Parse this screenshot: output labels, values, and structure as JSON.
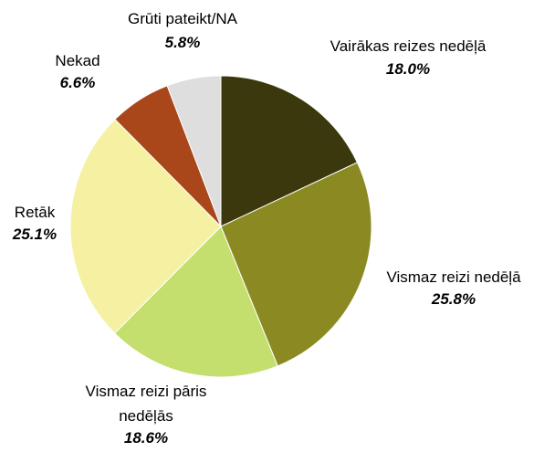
{
  "chart_data": {
    "type": "pie",
    "categories": [
      "Vairākas reizes nedēļā",
      "Vismaz reizi nedēļā",
      "Vismaz reizi pāris nedēļās",
      "Retāk",
      "Nekad",
      "Grūti pateikt/NA"
    ],
    "values": [
      18.0,
      25.8,
      18.6,
      25.1,
      6.6,
      5.8
    ],
    "value_labels": [
      "18.0%",
      "25.8%",
      "18.6%",
      "25.1%",
      "6.6%",
      "5.8%"
    ],
    "colors": [
      "#3b380e",
      "#8b8a22",
      "#c4df6e",
      "#f6f1a2",
      "#a9461a",
      "#dedede"
    ]
  }
}
